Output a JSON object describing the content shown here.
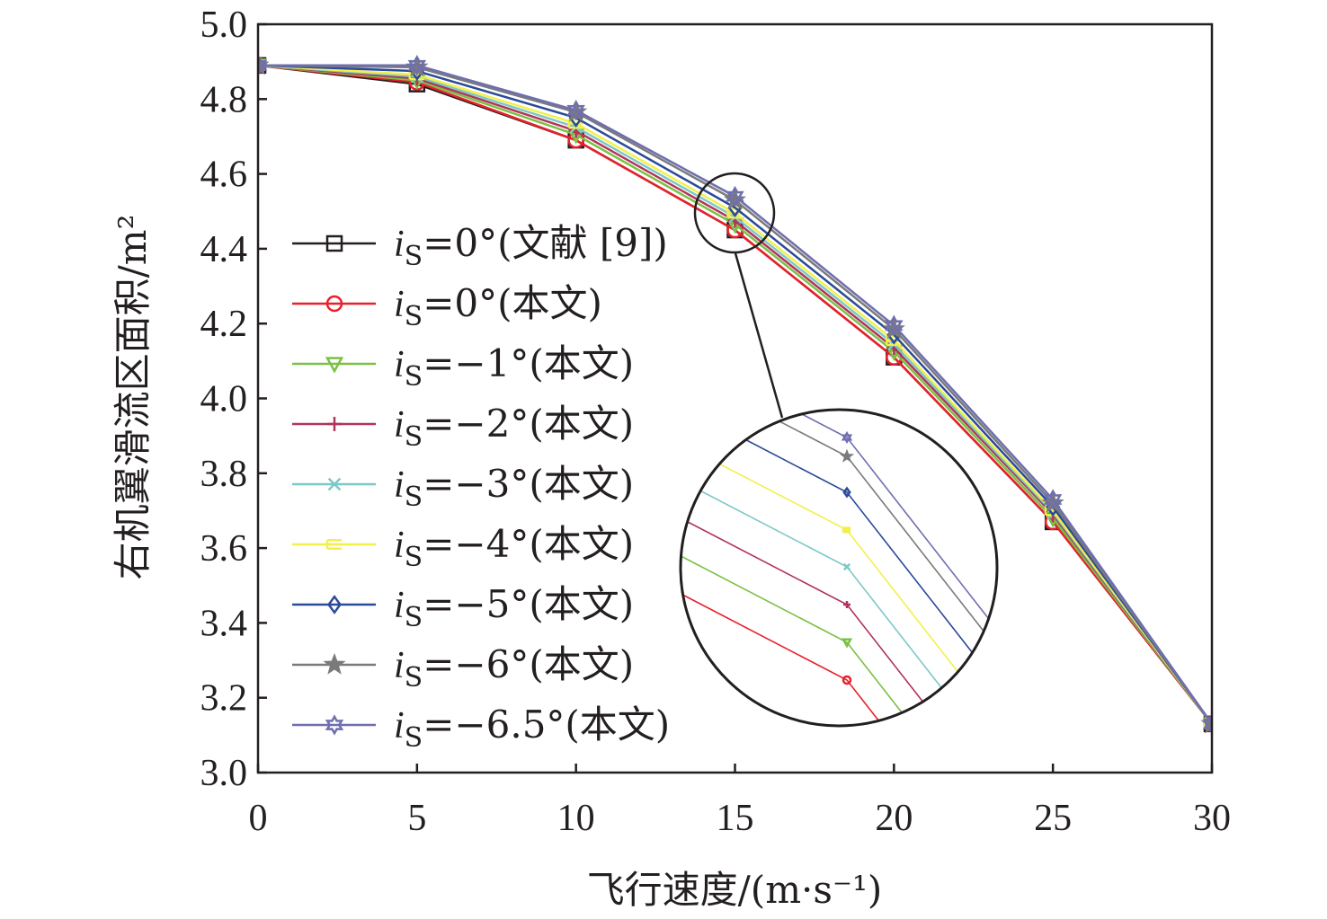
{
  "chart_data": {
    "type": "line",
    "xlabel": "飞行速度/(m·s⁻¹)",
    "ylabel": "右机翼滑流区面积/m²",
    "xlim": [
      0,
      30
    ],
    "ylim": [
      3.0,
      5.0
    ],
    "xticks": [
      "0",
      "5",
      "10",
      "15",
      "20",
      "25",
      "30"
    ],
    "yticks": [
      "3.0",
      "3.2",
      "3.4",
      "3.6",
      "3.8",
      "4.0",
      "4.2",
      "4.4",
      "4.6",
      "4.8",
      "5.0"
    ],
    "grid": false,
    "legend_position": "left-center",
    "x": [
      0,
      5,
      10,
      15,
      20,
      25,
      30
    ],
    "series": [
      {
        "name": "iS=0°(文献 [9])",
        "label_main": "0°(文献 [9])",
        "color": "#231f20",
        "marker": "square",
        "values": [
          4.89,
          4.84,
          4.69,
          4.45,
          4.11,
          3.67,
          3.13
        ]
      },
      {
        "name": "iS=0°(本文)",
        "label_main": "0°(本文)",
        "color": "#e8212b",
        "marker": "circle",
        "values": [
          4.89,
          4.845,
          4.69,
          4.45,
          4.11,
          3.67,
          3.13
        ]
      },
      {
        "name": "iS=−1°(本文)",
        "label_main": "−1°(本文)",
        "color": "#7bc043",
        "marker": "triangle-down",
        "values": [
          4.89,
          4.85,
          4.705,
          4.465,
          4.125,
          3.68,
          3.13
        ]
      },
      {
        "name": "iS=−2°(本文)",
        "label_main": "−2°(本文)",
        "color": "#b0355a",
        "marker": "plus",
        "values": [
          4.89,
          4.855,
          4.715,
          4.475,
          4.135,
          3.69,
          3.13
        ]
      },
      {
        "name": "iS=−3°(本文)",
        "label_main": "−3°(本文)",
        "color": "#7ec8c8",
        "marker": "x",
        "values": [
          4.89,
          4.86,
          4.725,
          4.485,
          4.145,
          3.695,
          3.13
        ]
      },
      {
        "name": "iS=−4°(本文)",
        "label_main": "−4°(本文)",
        "color": "#f2f04a",
        "marker": "bar",
        "values": [
          4.89,
          4.865,
          4.735,
          4.495,
          4.155,
          3.7,
          3.13
        ]
      },
      {
        "name": "iS=−5°(本文)",
        "label_main": "−5°(本文)",
        "color": "#2a4a9a",
        "marker": "diamond",
        "values": [
          4.89,
          4.875,
          4.75,
          4.51,
          4.17,
          3.71,
          3.13
        ]
      },
      {
        "name": "iS=−6°(本文)",
        "label_main": "−6°(本文)",
        "color": "#7a7a7a",
        "marker": "star",
        "values": [
          4.89,
          4.885,
          4.765,
          4.53,
          4.185,
          3.72,
          3.13
        ]
      },
      {
        "name": "iS=−6.5°(本文)",
        "label_main": "−6.5°(本文)",
        "color": "#6f6fb0",
        "marker": "hexagram",
        "values": [
          4.89,
          4.89,
          4.77,
          4.54,
          4.195,
          3.73,
          3.13
        ]
      }
    ]
  },
  "legend": {
    "symbol": "i",
    "subscript": "S",
    "equals": "="
  },
  "inset": {
    "description_hidden": "",
    "source_x": 15,
    "source_y": 4.5
  }
}
